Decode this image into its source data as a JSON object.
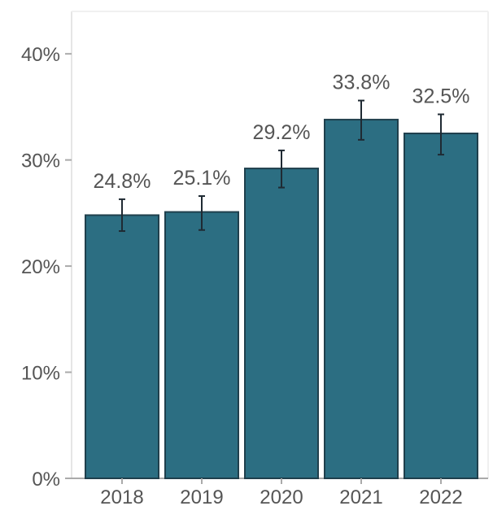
{
  "chart_data": {
    "type": "bar",
    "title": "",
    "xlabel": "",
    "ylabel": "",
    "categories": [
      "2018",
      "2019",
      "2020",
      "2021",
      "2022"
    ],
    "values": [
      24.8,
      25.1,
      29.2,
      33.8,
      32.5
    ],
    "error_low": [
      23.3,
      23.4,
      27.4,
      31.9,
      30.5
    ],
    "error_high": [
      26.3,
      26.6,
      30.9,
      35.6,
      34.3
    ],
    "data_labels": [
      "24.8%",
      "25.1%",
      "29.2%",
      "33.8%",
      "32.5%"
    ],
    "ylim": [
      0,
      44
    ],
    "yticks": [
      0,
      10,
      20,
      30,
      40
    ],
    "ytick_labels": [
      "0%",
      "10%",
      "20%",
      "30%",
      "40%"
    ],
    "grid": false,
    "legend": "none",
    "colors": {
      "bar_fill": "#2c6e82",
      "bar_stroke": "#1f3f4c",
      "error_bar": "#1f2a33",
      "axis": "#aaaaaa",
      "text": "#555555"
    }
  }
}
